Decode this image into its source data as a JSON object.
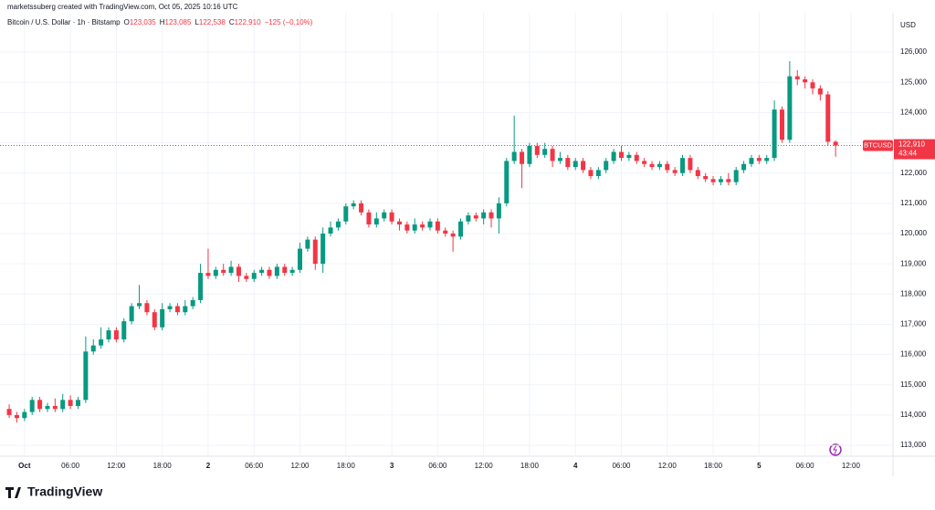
{
  "header": {
    "credit": "marketssuberg created with TradingView.com, Oct 05, 2025 10:16 UTC",
    "logo": "TradingView"
  },
  "chart_data": {
    "type": "candlestick",
    "title": "Bitcoin / U.S. Dollar · 1h · Bitstamp",
    "legend": [
      "O",
      "123,035",
      "H",
      "123,085",
      "L",
      "122,538",
      "C",
      "122,910",
      "−125 (−0.10%)"
    ],
    "currency": "USD",
    "symbol": "BTCUSD",
    "last_price_label": "122,910",
    "countdown": "43:44",
    "up_color": "#089981",
    "down_color": "#f23645",
    "candles": {
      "open": [
        114200,
        114000,
        113900,
        114100,
        114500,
        114200,
        114300,
        114200,
        114500,
        114300,
        114500,
        116100,
        116300,
        116500,
        116800,
        116500,
        117100,
        117600,
        117700,
        117400,
        116900,
        117500,
        117600,
        117400,
        117600,
        117800,
        118700,
        118600,
        118800,
        118700,
        118900,
        118600,
        118500,
        118700,
        118800,
        118600,
        118900,
        118700,
        118800,
        119500,
        119800,
        119000,
        120000,
        120200,
        120400,
        120900,
        121000,
        120700,
        120300,
        120500,
        120700,
        120400,
        120300,
        120100,
        120300,
        120200,
        120400,
        120100,
        120000,
        119900,
        120400,
        120600,
        120500,
        120700,
        120500,
        121000,
        122400,
        122700,
        122300,
        122900,
        122600,
        122800,
        122400,
        122500,
        122200,
        122400,
        122100,
        121900,
        122100,
        122400,
        122700,
        122500,
        122600,
        122400,
        122300,
        122200,
        122300,
        122100,
        122000,
        122500,
        122100,
        121900,
        121800,
        121700,
        121800,
        121700,
        122100,
        122300,
        122500,
        122400,
        122500,
        124100,
        123100,
        125200,
        125100,
        125000,
        124800,
        124600,
        123035
      ],
      "high": [
        114350,
        114100,
        114200,
        114600,
        114600,
        114400,
        114550,
        114700,
        114650,
        114600,
        116600,
        116500,
        116900,
        116900,
        116900,
        117200,
        117700,
        118300,
        117800,
        117500,
        117700,
        117700,
        117700,
        117800,
        117900,
        119000,
        119500,
        118900,
        119000,
        119100,
        119000,
        118700,
        118800,
        118900,
        118900,
        119000,
        119000,
        118900,
        119700,
        119900,
        119900,
        120200,
        120400,
        120500,
        121000,
        121100,
        121100,
        120800,
        120700,
        120800,
        120800,
        120500,
        120400,
        120500,
        120400,
        120500,
        120500,
        120200,
        120100,
        120500,
        120700,
        120700,
        120800,
        120800,
        121200,
        122500,
        123900,
        122800,
        123000,
        123000,
        123000,
        122900,
        122700,
        122600,
        122500,
        122500,
        122200,
        122200,
        122500,
        122800,
        122900,
        122700,
        122700,
        122500,
        122400,
        122400,
        122400,
        122200,
        122600,
        122600,
        122200,
        122000,
        121900,
        121900,
        122000,
        122200,
        122400,
        122600,
        122600,
        122600,
        124400,
        124200,
        125700,
        125400,
        125200,
        125100,
        124900,
        124700,
        123085
      ],
      "low": [
        113900,
        113750,
        113800,
        114000,
        114100,
        114100,
        114100,
        114100,
        114200,
        114200,
        114400,
        116000,
        116200,
        116400,
        116400,
        116400,
        117000,
        117500,
        117300,
        116800,
        116800,
        117400,
        117300,
        117300,
        117500,
        117700,
        118500,
        118500,
        118600,
        118600,
        118400,
        118400,
        118400,
        118600,
        118500,
        118500,
        118600,
        118600,
        118700,
        119400,
        118800,
        118700,
        119900,
        120100,
        120300,
        120800,
        120600,
        120200,
        120200,
        120400,
        120300,
        120100,
        120000,
        120000,
        120100,
        120100,
        120000,
        119900,
        119400,
        119800,
        120300,
        120400,
        120300,
        120200,
        120000,
        120900,
        122300,
        121500,
        122200,
        122500,
        122500,
        122200,
        122300,
        122100,
        122100,
        122000,
        121800,
        121800,
        122000,
        122300,
        122400,
        122400,
        122300,
        122200,
        122100,
        122100,
        122000,
        121900,
        121900,
        122000,
        121800,
        121700,
        121600,
        121600,
        121600,
        121600,
        122000,
        122200,
        122300,
        122300,
        122400,
        123000,
        123000,
        124900,
        124800,
        124600,
        124400,
        122900,
        122538
      ],
      "close": [
        114000,
        113900,
        114100,
        114500,
        114200,
        114300,
        114200,
        114500,
        114300,
        114500,
        116100,
        116300,
        116500,
        116800,
        116500,
        117100,
        117600,
        117700,
        117400,
        116900,
        117500,
        117600,
        117400,
        117600,
        117800,
        118700,
        118600,
        118800,
        118700,
        118900,
        118600,
        118500,
        118700,
        118800,
        118600,
        118900,
        118700,
        118800,
        119500,
        119800,
        119000,
        120000,
        120200,
        120400,
        120900,
        121000,
        120700,
        120300,
        120500,
        120700,
        120400,
        120300,
        120100,
        120300,
        120200,
        120400,
        120100,
        120000,
        119900,
        120400,
        120600,
        120500,
        120700,
        120500,
        121000,
        122400,
        122700,
        122300,
        122900,
        122600,
        122800,
        122400,
        122500,
        122200,
        122400,
        122100,
        121900,
        122100,
        122400,
        122700,
        122500,
        122600,
        122400,
        122300,
        122200,
        122300,
        122100,
        122000,
        122500,
        122100,
        121900,
        121800,
        121700,
        121800,
        121700,
        122100,
        122300,
        122500,
        122400,
        122500,
        124100,
        123100,
        125200,
        125100,
        125000,
        124800,
        124600,
        123035,
        122910
      ]
    },
    "xlim": [
      -1.2,
      115.5
    ],
    "xticks": [
      {
        "value": 2,
        "label": "Oct"
      },
      {
        "value": 8,
        "label": "06:00"
      },
      {
        "value": 14,
        "label": "12:00"
      },
      {
        "value": 20,
        "label": "18:00"
      },
      {
        "value": 26,
        "label": "2"
      },
      {
        "value": 32,
        "label": "06:00"
      },
      {
        "value": 38,
        "label": "12:00"
      },
      {
        "value": 44,
        "label": "18:00"
      },
      {
        "value": 50,
        "label": "3"
      },
      {
        "value": 56,
        "label": "06:00"
      },
      {
        "value": 62,
        "label": "12:00"
      },
      {
        "value": 68,
        "label": "18:00"
      },
      {
        "value": 74,
        "label": "4"
      },
      {
        "value": 80,
        "label": "06:00"
      },
      {
        "value": 86,
        "label": "12:00"
      },
      {
        "value": 92,
        "label": "18:00"
      },
      {
        "value": 98,
        "label": "5"
      },
      {
        "value": 104,
        "label": "06:00"
      },
      {
        "value": 110,
        "label": "12:00"
      }
    ],
    "ylim": [
      112640,
      127300
    ],
    "yticks": [
      {
        "value": 113000,
        "label": "113,000"
      },
      {
        "value": 114000,
        "label": "114,000"
      },
      {
        "value": 115000,
        "label": "115,000"
      },
      {
        "value": 116000,
        "label": "116,000"
      },
      {
        "value": 117000,
        "label": "117,000"
      },
      {
        "value": 118000,
        "label": "118,000"
      },
      {
        "value": 119000,
        "label": "119,000"
      },
      {
        "value": 120000,
        "label": "120,000"
      },
      {
        "value": 121000,
        "label": "121,000"
      },
      {
        "value": 122000,
        "label": "122,000"
      },
      {
        "value": 123000,
        "label": "123,000"
      },
      {
        "value": 124000,
        "label": "124,000"
      },
      {
        "value": 125000,
        "label": "125,000"
      },
      {
        "value": 126000,
        "label": "126,000"
      }
    ],
    "grid": true
  }
}
